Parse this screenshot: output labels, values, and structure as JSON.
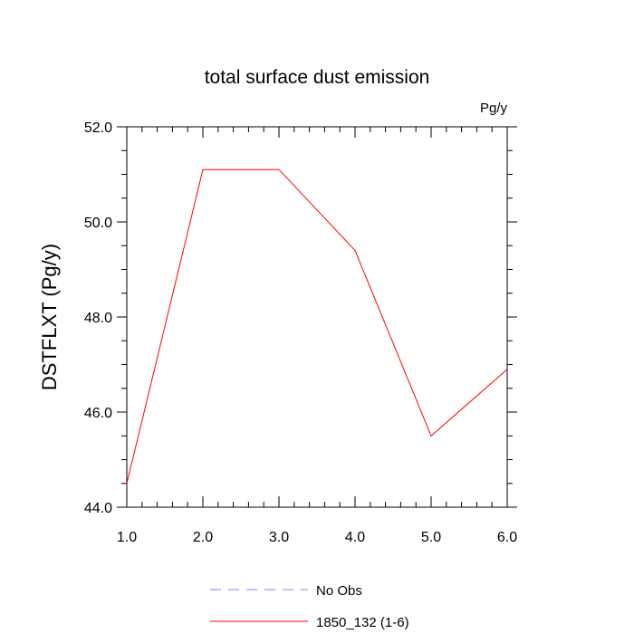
{
  "chart_data": {
    "type": "line",
    "title": "total surface dust emission",
    "units_label": "Pg/y",
    "xlabel": "",
    "ylabel": "DSTFLXT  (Pg/y)",
    "xlim": [
      1.0,
      6.0
    ],
    "ylim": [
      44.0,
      52.0
    ],
    "x_ticks": [
      1.0,
      2.0,
      3.0,
      4.0,
      5.0,
      6.0
    ],
    "x_tick_labels": [
      "1.0",
      "2.0",
      "3.0",
      "4.0",
      "5.0",
      "6.0"
    ],
    "y_ticks": [
      44.0,
      46.0,
      48.0,
      50.0,
      52.0
    ],
    "y_tick_labels": [
      "44.0",
      "46.0",
      "48.0",
      "50.0",
      "52.0"
    ],
    "grid": false,
    "legend_position": "bottom",
    "series": [
      {
        "name": "1850_132 (1-6)",
        "color": "#ff0000",
        "dash": "solid",
        "x": [
          1.0,
          2.0,
          3.0,
          4.0,
          5.0,
          6.0
        ],
        "y": [
          44.5,
          51.1,
          51.1,
          49.4,
          45.5,
          46.9
        ]
      }
    ],
    "legend": [
      {
        "label": "No Obs",
        "color": "#8080ff",
        "dash": "dashed"
      },
      {
        "label": "1850_132 (1-6)",
        "color": "#ff0000",
        "dash": "solid"
      }
    ]
  }
}
